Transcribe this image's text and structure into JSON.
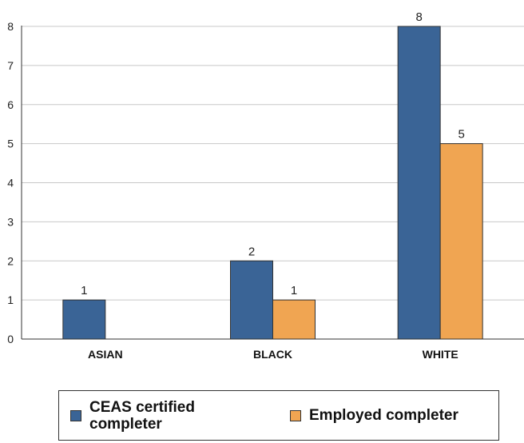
{
  "chart_data": {
    "type": "bar",
    "categories": [
      "ASIAN",
      "BLACK",
      "WHITE"
    ],
    "series": [
      {
        "name": "CEAS certified completer",
        "values": [
          1,
          2,
          8
        ],
        "color": "#3a6496"
      },
      {
        "name": "Employed completer",
        "values": [
          null,
          1,
          5
        ],
        "color": "#f0a552"
      }
    ],
    "data_labels": [
      [
        "1",
        "2",
        "8"
      ],
      [
        "",
        "1",
        "5"
      ]
    ],
    "ylim": [
      0,
      8
    ],
    "yticks": [
      "0",
      "1",
      "2",
      "3",
      "4",
      "5",
      "6",
      "7",
      "8"
    ],
    "grid": "horizontal",
    "legend": {
      "position": "bottom",
      "labels": [
        "CEAS certified completer",
        "Employed completer"
      ]
    }
  }
}
